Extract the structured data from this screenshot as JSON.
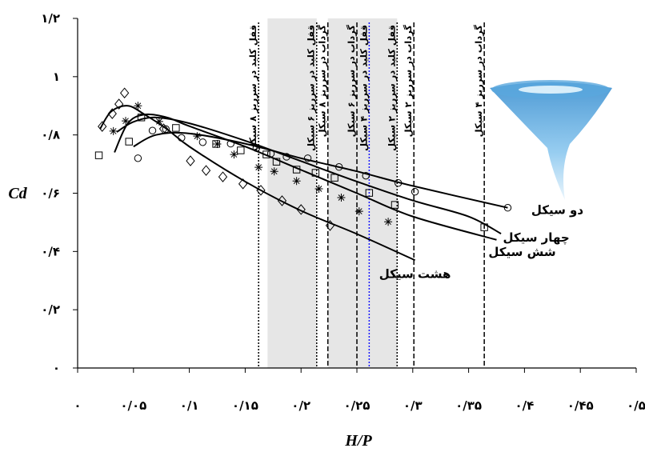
{
  "chart_data": {
    "type": "scatter",
    "xlabel": "H/P",
    "ylabel": "Cd",
    "xlim": [
      0,
      0.5
    ],
    "ylim": [
      0,
      1.2
    ],
    "xticks": [
      {
        "value": 0,
        "label": "۰"
      },
      {
        "value": 0.05,
        "label": "۰/۰۵"
      },
      {
        "value": 0.1,
        "label": "۰/۱"
      },
      {
        "value": 0.15,
        "label": "۰/۱۵"
      },
      {
        "value": 0.2,
        "label": "۰/۲"
      },
      {
        "value": 0.25,
        "label": "۰/۲۵"
      },
      {
        "value": 0.3,
        "label": "۰/۳"
      },
      {
        "value": 0.35,
        "label": "۰/۳۵"
      },
      {
        "value": 0.4,
        "label": "۰/۴"
      },
      {
        "value": 0.45,
        "label": "۰/۴۵"
      },
      {
        "value": 0.5,
        "label": "۰/۵"
      }
    ],
    "yticks": [
      {
        "value": 0,
        "label": "۰"
      },
      {
        "value": 0.2,
        "label": "۰/۲"
      },
      {
        "value": 0.4,
        "label": "۰/۴"
      },
      {
        "value": 0.6,
        "label": "۰/۶"
      },
      {
        "value": 0.8,
        "label": "۰/۸"
      },
      {
        "value": 1,
        "label": "۱"
      },
      {
        "value": 1.2,
        "label": "۱/۲"
      }
    ],
    "grid": false,
    "shaded": [
      [
        0.17,
        0.214
      ],
      [
        0.224,
        0.286
      ]
    ],
    "shade_color": "#e6e6e6",
    "vlines": [
      {
        "x": 0.162,
        "label": "قفل کلید در سرریز ۸ سیکل",
        "style": "dotted",
        "color": "#000000"
      },
      {
        "x": 0.214,
        "label": "قفل کلید در سرریز ۶ سیکل",
        "style": "dotted",
        "color": "#000000"
      },
      {
        "x": 0.224,
        "label": "گرداب در سرریز ۸ سیکل",
        "style": "dashed",
        "color": "#000000"
      },
      {
        "x": 0.25,
        "label": "گرداب در سرریز ۶ سیکل",
        "style": "dashed",
        "color": "#000000"
      },
      {
        "x": 0.261,
        "label": "قفل کلید در سرریز ۴ سیکل",
        "style": "dotted",
        "color": "#1a1aff"
      },
      {
        "x": 0.286,
        "label": "قفل کلید در سرریز ۲ سیکل",
        "style": "dotted",
        "color": "#000000"
      },
      {
        "x": 0.301,
        "label": "گرداب در سرریز ۲ سیکل",
        "style": "dashed",
        "color": "#000000"
      },
      {
        "x": 0.364,
        "label": "گرداب در سرریز ۴ سیکل",
        "style": "dashed",
        "color": "#000000"
      }
    ],
    "series": [
      {
        "name": "دو سیکل",
        "marker": "circle",
        "color": "#000000",
        "x": [
          0.054,
          0.067,
          0.079,
          0.093,
          0.112,
          0.137,
          0.16,
          0.173,
          0.187,
          0.206,
          0.234,
          0.258,
          0.287,
          0.302,
          0.385
        ],
        "values": [
          0.72,
          0.815,
          0.82,
          0.79,
          0.775,
          0.77,
          0.755,
          0.736,
          0.725,
          0.72,
          0.69,
          0.66,
          0.635,
          0.605,
          0.55
        ],
        "fit_x": [
          0.05,
          0.07,
          0.1,
          0.15,
          0.2,
          0.25,
          0.3,
          0.385
        ],
        "fit_values": [
          0.76,
          0.8,
          0.805,
          0.77,
          0.72,
          0.675,
          0.625,
          0.55
        ]
      },
      {
        "name": "چهار سیکل",
        "marker": "square",
        "color": "#000000",
        "x": [
          0.019,
          0.046,
          0.057,
          0.088,
          0.124,
          0.146,
          0.169,
          0.178,
          0.196,
          0.213,
          0.23,
          0.261,
          0.284,
          0.364
        ],
        "values": [
          0.73,
          0.777,
          0.86,
          0.824,
          0.769,
          0.747,
          0.733,
          0.708,
          0.681,
          0.67,
          0.653,
          0.601,
          0.56,
          0.483
        ],
        "fit_x": [
          0.035,
          0.05,
          0.07,
          0.1,
          0.15,
          0.2,
          0.25,
          0.3,
          0.35,
          0.379
        ],
        "fit_values": [
          0.81,
          0.845,
          0.86,
          0.84,
          0.78,
          0.71,
          0.64,
          0.575,
          0.52,
          0.461
        ]
      },
      {
        "name": "شش سیکل",
        "marker": "star",
        "color": "#000000",
        "x": [
          0.032,
          0.043,
          0.054,
          0.073,
          0.107,
          0.125,
          0.14,
          0.162,
          0.176,
          0.196,
          0.216,
          0.236,
          0.252,
          0.278
        ],
        "values": [
          0.813,
          0.848,
          0.9,
          0.846,
          0.796,
          0.769,
          0.733,
          0.689,
          0.675,
          0.642,
          0.615,
          0.585,
          0.538,
          0.502
        ],
        "fit_x": [
          0.033,
          0.045,
          0.06,
          0.08,
          0.1,
          0.15,
          0.2,
          0.25,
          0.3,
          0.375
        ],
        "fit_values": [
          0.74,
          0.84,
          0.87,
          0.86,
          0.83,
          0.76,
          0.68,
          0.6,
          0.52,
          0.44
        ]
      },
      {
        "name": "هشت سیکل",
        "marker": "diamond",
        "color": "#000000",
        "x": [
          0.022,
          0.031,
          0.037,
          0.042,
          0.077,
          0.101,
          0.115,
          0.13,
          0.148,
          0.164,
          0.183,
          0.2,
          0.226
        ],
        "values": [
          0.829,
          0.873,
          0.906,
          0.944,
          0.821,
          0.711,
          0.678,
          0.656,
          0.632,
          0.61,
          0.574,
          0.544,
          0.489
        ],
        "fit_x": [
          0.02,
          0.03,
          0.045,
          0.06,
          0.08,
          0.1,
          0.15,
          0.2,
          0.25,
          0.302
        ],
        "fit_values": [
          0.82,
          0.88,
          0.9,
          0.87,
          0.82,
          0.76,
          0.64,
          0.54,
          0.46,
          0.37
        ]
      }
    ]
  }
}
